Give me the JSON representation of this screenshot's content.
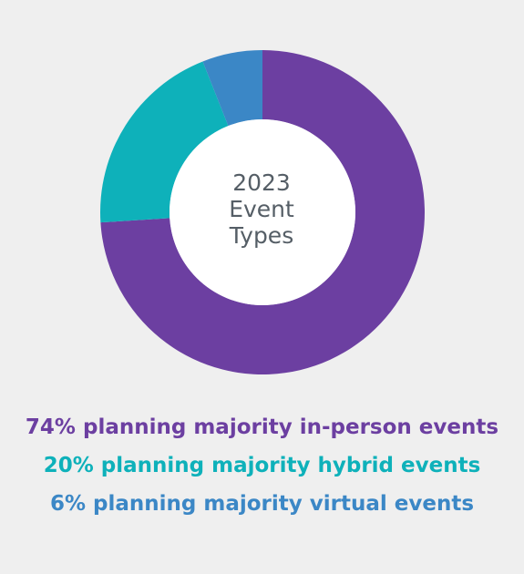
{
  "chart_data": {
    "type": "pie",
    "donut": true,
    "title_lines": [
      "2023",
      "Event",
      "Types"
    ],
    "slices": [
      {
        "label": "74% planning majority in-person events",
        "value": 74,
        "color": "#6c3fa1"
      },
      {
        "label": "20% planning majority hybrid events",
        "value": 20,
        "color": "#0eb1ba"
      },
      {
        "label": "6% planning majority virtual events",
        "value": 6,
        "color": "#3b87c6"
      }
    ]
  }
}
